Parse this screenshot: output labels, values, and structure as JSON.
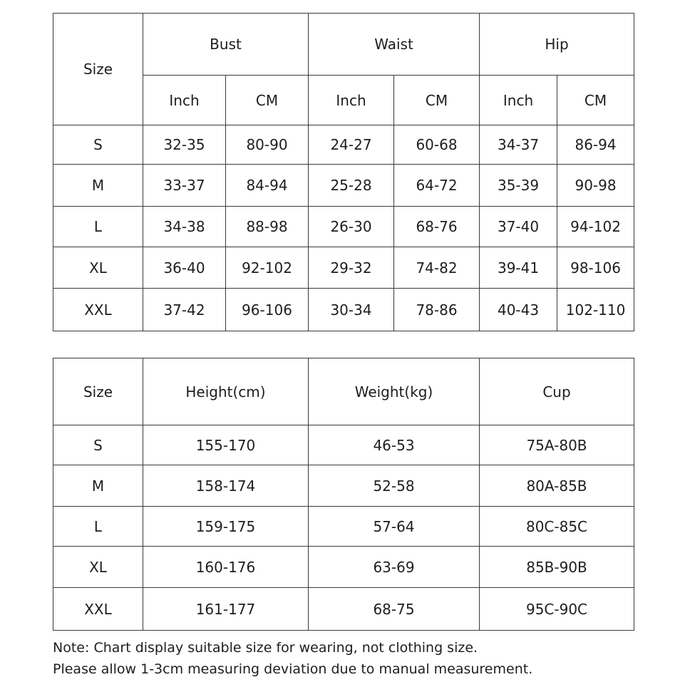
{
  "measurements_table": {
    "size_label": "Size",
    "groups": [
      "Bust",
      "Waist",
      "Hip"
    ],
    "units": [
      "Inch",
      "CM",
      "Inch",
      "CM",
      "Inch",
      "CM"
    ],
    "rows": [
      {
        "size": "S",
        "values": [
          "32-35",
          "80-90",
          "24-27",
          "60-68",
          "34-37",
          "86-94"
        ]
      },
      {
        "size": "M",
        "values": [
          "33-37",
          "84-94",
          "25-28",
          "64-72",
          "35-39",
          "90-98"
        ]
      },
      {
        "size": "L",
        "values": [
          "34-38",
          "88-98",
          "26-30",
          "68-76",
          "37-40",
          "94-102"
        ]
      },
      {
        "size": "XL",
        "values": [
          "36-40",
          "92-102",
          "29-32",
          "74-82",
          "39-41",
          "98-106"
        ]
      },
      {
        "size": "XXL",
        "values": [
          "37-42",
          "96-106",
          "30-34",
          "78-86",
          "40-43",
          "102-110"
        ]
      }
    ]
  },
  "fit_table": {
    "headers": [
      "Size",
      "Height(cm)",
      "Weight(kg)",
      "Cup"
    ],
    "rows": [
      [
        "S",
        "155-170",
        "46-53",
        "75A-80B"
      ],
      [
        "M",
        "158-174",
        "52-58",
        "80A-85B"
      ],
      [
        "L",
        "159-175",
        "57-64",
        "80C-85C"
      ],
      [
        "XL",
        "160-176",
        "63-69",
        "85B-90B"
      ],
      [
        "XXL",
        "161-177",
        "68-75",
        "95C-90C"
      ]
    ]
  },
  "note": {
    "label": "Note:",
    "line1": "Chart display suitable size for wearing, not clothing size.",
    "line2": "Please allow 1-3cm measuring deviation due to manual measurement."
  }
}
